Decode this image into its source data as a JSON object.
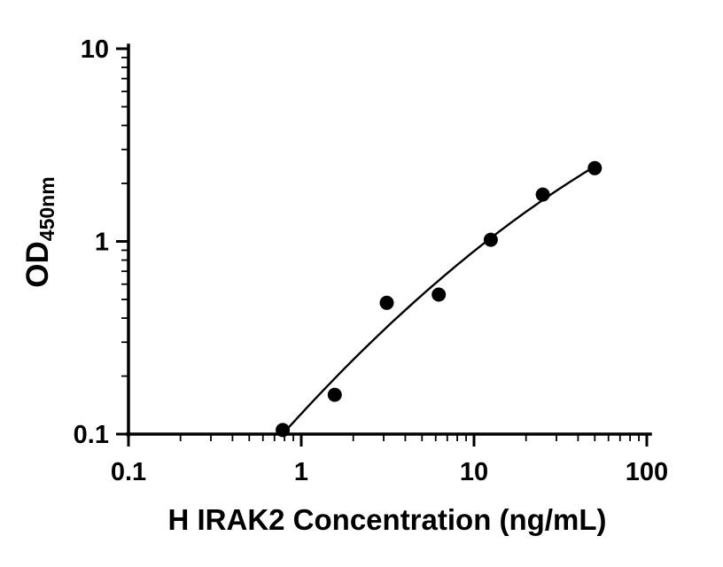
{
  "chart_data": {
    "type": "scatter",
    "title": "",
    "xlabel": "H IRAK2 Concentration (ng/mL)",
    "ylabel": "OD",
    "ylabel_subscript": "450nm",
    "xscale": "log",
    "yscale": "log",
    "xlim": [
      0.1,
      100
    ],
    "ylim": [
      0.1,
      10
    ],
    "x_tick_values": [
      0.1,
      1,
      10,
      100
    ],
    "x_tick_labels": [
      "0.1",
      "1",
      "10",
      "100"
    ],
    "y_tick_values": [
      0.1,
      1,
      10
    ],
    "y_tick_labels": [
      "0.1",
      "1",
      "10"
    ],
    "grid": false,
    "legend": false,
    "series": [
      {
        "x": [
          0.781,
          1.563,
          3.125,
          6.25,
          12.5,
          25,
          50
        ],
        "y": [
          0.105,
          0.16,
          0.48,
          0.53,
          1.02,
          1.75,
          2.4
        ],
        "marker": "filled-circle",
        "marker_color": "#000000",
        "fit_line": true,
        "line_color": "#000000"
      }
    ]
  }
}
